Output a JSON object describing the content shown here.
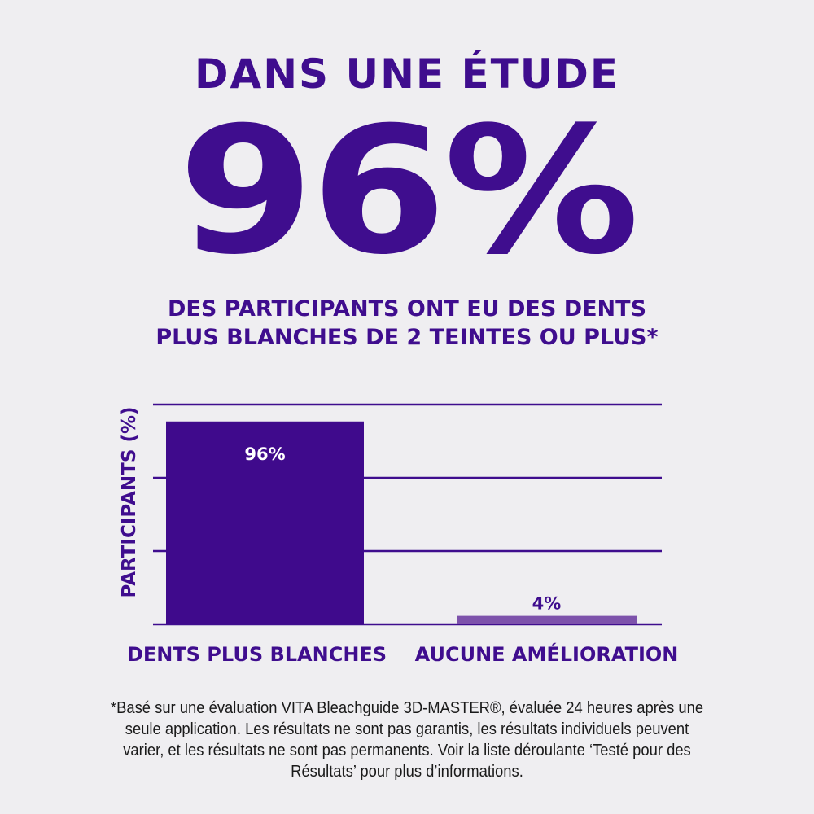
{
  "header": {
    "kicker": "DANS UNE ÉTUDE",
    "headline": "96%",
    "subline_1": "DES PARTICIPANTS ONT EU DES DENTS",
    "subline_2": "PLUS BLANCHES DE 2 TEINTES OU PLUS*"
  },
  "chart_data": {
    "type": "bar",
    "title": "",
    "ylabel": "PARTICIPANTS (%)",
    "xlabel": "",
    "categories": [
      "DENTS PLUS BLANCHES",
      "AUCUNE AMÉLIORATION"
    ],
    "values": [
      96,
      4
    ],
    "data_labels": [
      "96%",
      "4%"
    ],
    "bar_colors": [
      "#3f0a8c",
      "#7d52ab"
    ],
    "ylim": [
      0,
      104
    ],
    "grid": true,
    "gridline_count": 4
  },
  "footnote": "*Basé sur une évaluation VITA Bleachguide 3D-MASTER®, évaluée 24 heures après une seule application. Les résultats ne sont pas garantis, les résultats individuels peuvent varier, et les résultats ne sont pas permanents. Voir la liste déroulante ‘Testé pour des Résultats’ pour plus d’informations.",
  "colors": {
    "primary": "#3f0d8e",
    "background": "#efeef1"
  }
}
